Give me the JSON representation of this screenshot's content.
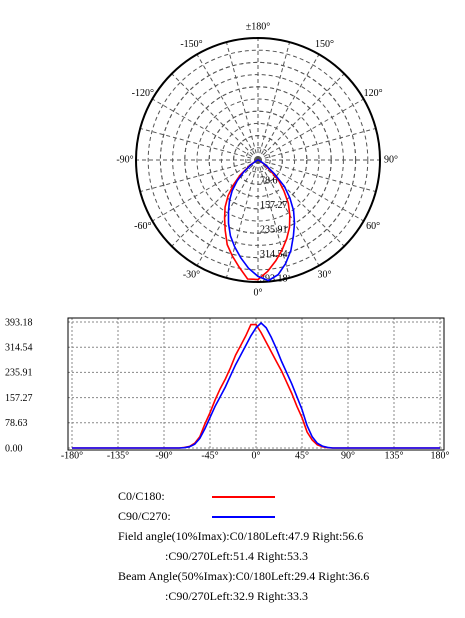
{
  "chart_data": [
    {
      "type": "polar",
      "rlim": [
        0,
        393.18
      ],
      "rticks": [
        {
          "value": 78.63,
          "label": "78.6"
        },
        157.27,
        235.91,
        314.54,
        393.18
      ],
      "angleticks": [
        {
          "value": 180,
          "label": "±180°"
        },
        {
          "value": -150,
          "label": "-150°"
        },
        {
          "value": 150,
          "label": "150°"
        },
        {
          "value": -120,
          "label": "-120°"
        },
        {
          "value": 120,
          "label": "120°"
        },
        {
          "value": -90,
          "label": "-90°"
        },
        {
          "value": 90,
          "label": "90°"
        },
        {
          "value": -60,
          "label": "-60°"
        },
        {
          "value": 60,
          "label": "60°"
        },
        {
          "value": -30,
          "label": "-30°"
        },
        {
          "value": 30,
          "label": "30°"
        },
        {
          "value": 0,
          "label": "0°"
        }
      ],
      "grid": true
    },
    {
      "type": "line",
      "x": [
        -180,
        -90,
        -75,
        -70,
        -65,
        -60,
        -55,
        -50,
        -45,
        -40,
        -35,
        -30,
        -25,
        -20,
        -15,
        -10,
        -5,
        0,
        5,
        10,
        15,
        20,
        25,
        30,
        35,
        40,
        45,
        50,
        55,
        60,
        65,
        70,
        75,
        90,
        180
      ],
      "series": [
        {
          "name": "C0/C180:",
          "color": "#ff0000",
          "values": [
            0,
            0,
            0,
            2,
            5,
            15,
            35,
            75,
            110,
            150,
            185,
            215,
            250,
            290,
            320,
            350,
            385,
            385,
            360,
            330,
            300,
            270,
            240,
            205,
            170,
            130,
            95,
            50,
            25,
            10,
            4,
            1,
            0,
            0,
            0
          ]
        },
        {
          "name": "C90/C270:",
          "color": "#0000ff",
          "values": [
            0,
            0,
            0,
            1,
            4,
            12,
            30,
            60,
            95,
            130,
            160,
            190,
            225,
            260,
            290,
            320,
            350,
            375,
            390,
            375,
            345,
            310,
            270,
            235,
            200,
            160,
            120,
            70,
            35,
            15,
            6,
            2,
            0,
            0,
            0
          ]
        }
      ],
      "xlim": [
        -180,
        180
      ],
      "xticks": [
        {
          "value": -180,
          "label": "-180°"
        },
        {
          "value": -135,
          "label": "-135°"
        },
        {
          "value": -90,
          "label": "-90°"
        },
        {
          "value": -45,
          "label": "-45°"
        },
        {
          "value": 0,
          "label": "0°"
        },
        {
          "value": 45,
          "label": "45°"
        },
        {
          "value": 90,
          "label": "90°"
        },
        {
          "value": 135,
          "label": "135°"
        },
        {
          "value": 180,
          "label": "180°"
        }
      ],
      "ylim": [
        0,
        393.18
      ],
      "yticks": [
        {
          "value": 0,
          "label": "0.00"
        },
        78.63,
        157.27,
        235.91,
        314.54,
        393.18
      ],
      "grid": true,
      "annotations": [
        "Field angle(10%Imax):C0/180Left:47.9 Right:56.6",
        ":C90/270Left:51.4 Right:53.3",
        "Beam Angle(50%Imax):C0/180Left:29.4 Right:36.6",
        ":C90/270Left:32.9 Right:33.3"
      ]
    }
  ]
}
